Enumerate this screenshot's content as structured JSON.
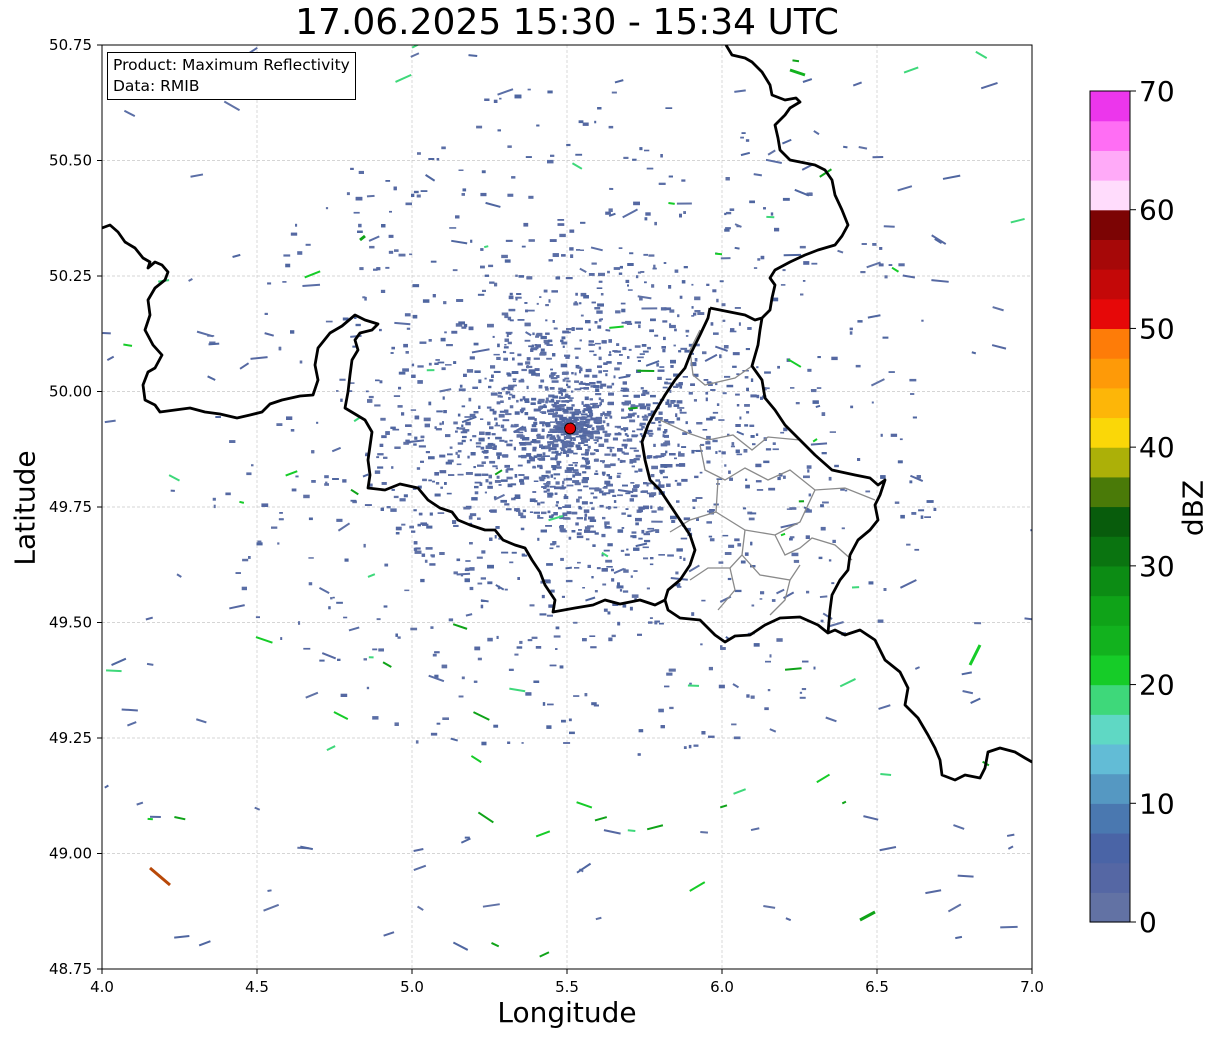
{
  "title": "17.06.2025 15:30 - 15:34 UTC",
  "info": {
    "product": "Product: Maximum Reflectivity",
    "data": "Data: RMIB"
  },
  "axes": {
    "xlabel": "Longitude",
    "ylabel": "Latitude",
    "xlim": [
      4.0,
      7.0
    ],
    "ylim": [
      48.75,
      50.75
    ],
    "xticks": [
      "4.0",
      "4.5",
      "5.0",
      "5.5",
      "6.0",
      "6.5",
      "7.0"
    ],
    "yticks": [
      "48.75",
      "49.00",
      "49.25",
      "49.50",
      "49.75",
      "50.00",
      "50.25",
      "50.50",
      "50.75"
    ],
    "grid": true
  },
  "radar_site": {
    "lon": 5.51,
    "lat": 49.92,
    "color": "#e00000"
  },
  "colorbar": {
    "label": "dBZ",
    "range": [
      0,
      70
    ],
    "ticks": [
      "0",
      "10",
      "20",
      "30",
      "40",
      "50",
      "60",
      "70"
    ],
    "colors": [
      "#6272a4",
      "#5567a4",
      "#4a64a6",
      "#4a78b0",
      "#5598c2",
      "#62bcd6",
      "#5fd8c4",
      "#3ed87a",
      "#16cc28",
      "#12b21e",
      "#0fa318",
      "#0c8c14",
      "#0a7410",
      "#085c0c",
      "#4a7a08",
      "#acb008",
      "#fad708",
      "#fdb608",
      "#fe9a08",
      "#fe7c08",
      "#e60808",
      "#c40808",
      "#a60808",
      "#7c0404",
      "#ffdcfc",
      "#ffaaf8",
      "#ff6ef4",
      "#ec36ec"
    ]
  }
}
